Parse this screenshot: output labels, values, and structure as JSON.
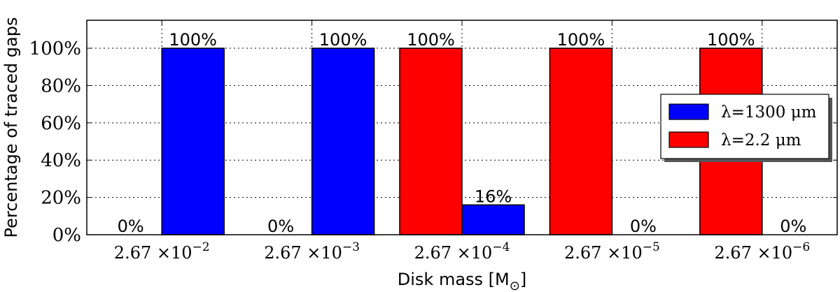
{
  "chart_data": {
    "type": "bar",
    "title": "",
    "xlabel": "Disk mass [M⊙]",
    "ylabel": "Percentage of traced gaps",
    "ylim": [
      0,
      115
    ],
    "yticks": [
      "0%",
      "20%",
      "40%",
      "60%",
      "80%",
      "100%"
    ],
    "ytick_values": [
      0,
      20,
      40,
      60,
      80,
      100
    ],
    "categories": [
      {
        "base": "2.67",
        "times": "×10",
        "exp": "−2"
      },
      {
        "base": "2.67",
        "times": "×10",
        "exp": "−3"
      },
      {
        "base": "2.67",
        "times": "×10",
        "exp": "−4"
      },
      {
        "base": "2.67",
        "times": "×10",
        "exp": "−5"
      },
      {
        "base": "2.67",
        "times": "×10",
        "exp": "−6"
      }
    ],
    "series": [
      {
        "name": "λ=1300 μm",
        "color": "#0000ff",
        "values": [
          100,
          100,
          16,
          0,
          0
        ]
      },
      {
        "name": "λ=2.2 μm",
        "color": "#ff0000",
        "values": [
          0,
          0,
          100,
          100,
          100
        ]
      }
    ],
    "bar_labels": [
      [
        "100%",
        "100%",
        "16%",
        "0%",
        "0%"
      ],
      [
        "0%",
        "0%",
        "100%",
        "100%",
        "100%"
      ]
    ],
    "grid": true,
    "legend_position": "right"
  }
}
